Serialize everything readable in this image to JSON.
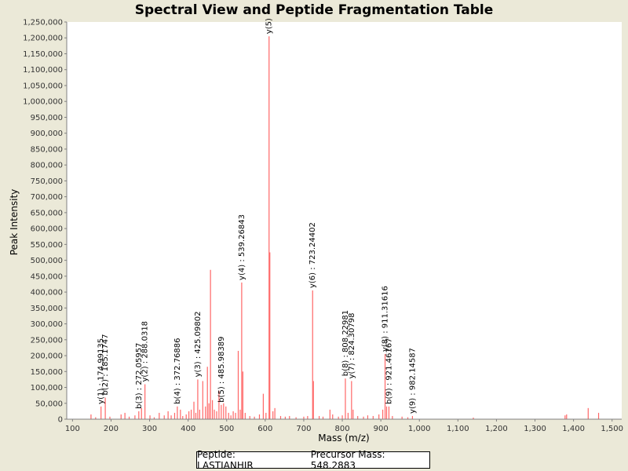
{
  "chart_data": {
    "type": "bar",
    "title": "Spectral View and Peptide Fragmentation Table",
    "xlabel": "Mass (m/z)",
    "ylabel": "Peak Intensity",
    "xlim": [
      85,
      1525
    ],
    "ylim": [
      0,
      1250000
    ],
    "x_ticks": [
      100,
      200,
      300,
      400,
      500,
      600,
      700,
      800,
      900,
      1000,
      1100,
      1200,
      1300,
      1400,
      1500
    ],
    "y_ticks": [
      0,
      50000,
      100000,
      150000,
      200000,
      250000,
      300000,
      350000,
      400000,
      450000,
      500000,
      550000,
      600000,
      650000,
      700000,
      750000,
      800000,
      850000,
      900000,
      950000,
      1000000,
      1050000,
      1100000,
      1150000,
      1200000,
      1250000
    ],
    "grid": false,
    "bar_color": "#ff6666",
    "peaks": [
      {
        "mz": 148,
        "intensity": 15000
      },
      {
        "mz": 160,
        "intensity": 6000
      },
      {
        "mz": 174,
        "intensity": 40000
      },
      {
        "mz": 185,
        "intensity": 68000
      },
      {
        "mz": 197,
        "intensity": 8000
      },
      {
        "mz": 226,
        "intensity": 15000
      },
      {
        "mz": 236,
        "intensity": 20000
      },
      {
        "mz": 247,
        "intensity": 8000
      },
      {
        "mz": 262,
        "intensity": 12000
      },
      {
        "mz": 272,
        "intensity": 25000
      },
      {
        "mz": 279,
        "intensity": 35000
      },
      {
        "mz": 288,
        "intensity": 110000
      },
      {
        "mz": 301,
        "intensity": 12000
      },
      {
        "mz": 312,
        "intensity": 6000
      },
      {
        "mz": 325,
        "intensity": 20000
      },
      {
        "mz": 338,
        "intensity": 12000
      },
      {
        "mz": 348,
        "intensity": 25000
      },
      {
        "mz": 356,
        "intensity": 12000
      },
      {
        "mz": 365,
        "intensity": 20000
      },
      {
        "mz": 372,
        "intensity": 40000
      },
      {
        "mz": 380,
        "intensity": 30000
      },
      {
        "mz": 386,
        "intensity": 10000
      },
      {
        "mz": 395,
        "intensity": 15000
      },
      {
        "mz": 402,
        "intensity": 25000
      },
      {
        "mz": 408,
        "intensity": 30000
      },
      {
        "mz": 415,
        "intensity": 55000
      },
      {
        "mz": 420,
        "intensity": 20000
      },
      {
        "mz": 425,
        "intensity": 125000
      },
      {
        "mz": 430,
        "intensity": 30000
      },
      {
        "mz": 438,
        "intensity": 120000
      },
      {
        "mz": 445,
        "intensity": 40000
      },
      {
        "mz": 450,
        "intensity": 165000
      },
      {
        "mz": 454,
        "intensity": 50000
      },
      {
        "mz": 458,
        "intensity": 470000
      },
      {
        "mz": 463,
        "intensity": 60000
      },
      {
        "mz": 468,
        "intensity": 30000
      },
      {
        "mz": 474,
        "intensity": 25000
      },
      {
        "mz": 480,
        "intensity": 90000
      },
      {
        "mz": 486,
        "intensity": 45000
      },
      {
        "mz": 492,
        "intensity": 50000
      },
      {
        "mz": 498,
        "intensity": 40000
      },
      {
        "mz": 505,
        "intensity": 20000
      },
      {
        "mz": 511,
        "intensity": 12000
      },
      {
        "mz": 517,
        "intensity": 25000
      },
      {
        "mz": 523,
        "intensity": 20000
      },
      {
        "mz": 530,
        "intensity": 215000
      },
      {
        "mz": 535,
        "intensity": 30000
      },
      {
        "mz": 539,
        "intensity": 430000
      },
      {
        "mz": 542,
        "intensity": 150000
      },
      {
        "mz": 548,
        "intensity": 20000
      },
      {
        "mz": 560,
        "intensity": 10000
      },
      {
        "mz": 572,
        "intensity": 8000
      },
      {
        "mz": 585,
        "intensity": 15000
      },
      {
        "mz": 595,
        "intensity": 80000
      },
      {
        "mz": 602,
        "intensity": 20000
      },
      {
        "mz": 610,
        "intensity": 1205000
      },
      {
        "mz": 612,
        "intensity": 525000
      },
      {
        "mz": 620,
        "intensity": 25000
      },
      {
        "mz": 625,
        "intensity": 35000
      },
      {
        "mz": 640,
        "intensity": 10000
      },
      {
        "mz": 652,
        "intensity": 8000
      },
      {
        "mz": 663,
        "intensity": 10000
      },
      {
        "mz": 680,
        "intensity": 6000
      },
      {
        "mz": 700,
        "intensity": 8000
      },
      {
        "mz": 710,
        "intensity": 10000
      },
      {
        "mz": 723,
        "intensity": 405000
      },
      {
        "mz": 725,
        "intensity": 120000
      },
      {
        "mz": 740,
        "intensity": 10000
      },
      {
        "mz": 750,
        "intensity": 8000
      },
      {
        "mz": 768,
        "intensity": 30000
      },
      {
        "mz": 775,
        "intensity": 15000
      },
      {
        "mz": 790,
        "intensity": 8000
      },
      {
        "mz": 800,
        "intensity": 12000
      },
      {
        "mz": 808,
        "intensity": 128000
      },
      {
        "mz": 815,
        "intensity": 20000
      },
      {
        "mz": 824,
        "intensity": 120000
      },
      {
        "mz": 828,
        "intensity": 30000
      },
      {
        "mz": 840,
        "intensity": 10000
      },
      {
        "mz": 855,
        "intensity": 8000
      },
      {
        "mz": 866,
        "intensity": 12000
      },
      {
        "mz": 880,
        "intensity": 10000
      },
      {
        "mz": 895,
        "intensity": 15000
      },
      {
        "mz": 905,
        "intensity": 30000
      },
      {
        "mz": 911,
        "intensity": 205000
      },
      {
        "mz": 915,
        "intensity": 40000
      },
      {
        "mz": 921,
        "intensity": 40000
      },
      {
        "mz": 930,
        "intensity": 10000
      },
      {
        "mz": 955,
        "intensity": 8000
      },
      {
        "mz": 970,
        "intensity": 6000
      },
      {
        "mz": 982,
        "intensity": 10000
      },
      {
        "mz": 1140,
        "intensity": 5000
      },
      {
        "mz": 1378,
        "intensity": 12000
      },
      {
        "mz": 1382,
        "intensity": 15000
      },
      {
        "mz": 1438,
        "intensity": 35000
      },
      {
        "mz": 1465,
        "intensity": 20000
      }
    ],
    "annotations": [
      {
        "label": "y(1) : 174.99135",
        "mz": 174,
        "intensity": 40000
      },
      {
        "label": "b(2) : 185.1747",
        "mz": 185,
        "intensity": 68000
      },
      {
        "label": "b(3) : 272.05957",
        "mz": 272,
        "intensity": 25000
      },
      {
        "label": "y(2) : 288.0318",
        "mz": 288,
        "intensity": 110000
      },
      {
        "label": "b(4) : 372.76886",
        "mz": 372,
        "intensity": 40000
      },
      {
        "label": "y(3) : 425.09802",
        "mz": 425,
        "intensity": 125000
      },
      {
        "label": "b(5) : 485.98389",
        "mz": 486,
        "intensity": 45000
      },
      {
        "label": "y(4) : 539.26843",
        "mz": 539,
        "intensity": 430000
      },
      {
        "label": "y(5)",
        "mz": 610,
        "intensity": 1205000
      },
      {
        "label": "y(6) : 723.24402",
        "mz": 723,
        "intensity": 405000
      },
      {
        "label": "b(8) : 808.22981",
        "mz": 808,
        "intensity": 128000
      },
      {
        "label": "y(7) : 824.30798",
        "mz": 824,
        "intensity": 120000
      },
      {
        "label": "y(8) : 911.31616",
        "mz": 911,
        "intensity": 205000
      },
      {
        "label": "b(9) : 921.46167",
        "mz": 921,
        "intensity": 40000
      },
      {
        "label": "y(9) : 982.14587",
        "mz": 982,
        "intensity": 10000
      }
    ]
  },
  "footer": {
    "peptide": "Peptide: LASTIANHIR",
    "precursor": "Precursor Mass: 548.2883"
  }
}
